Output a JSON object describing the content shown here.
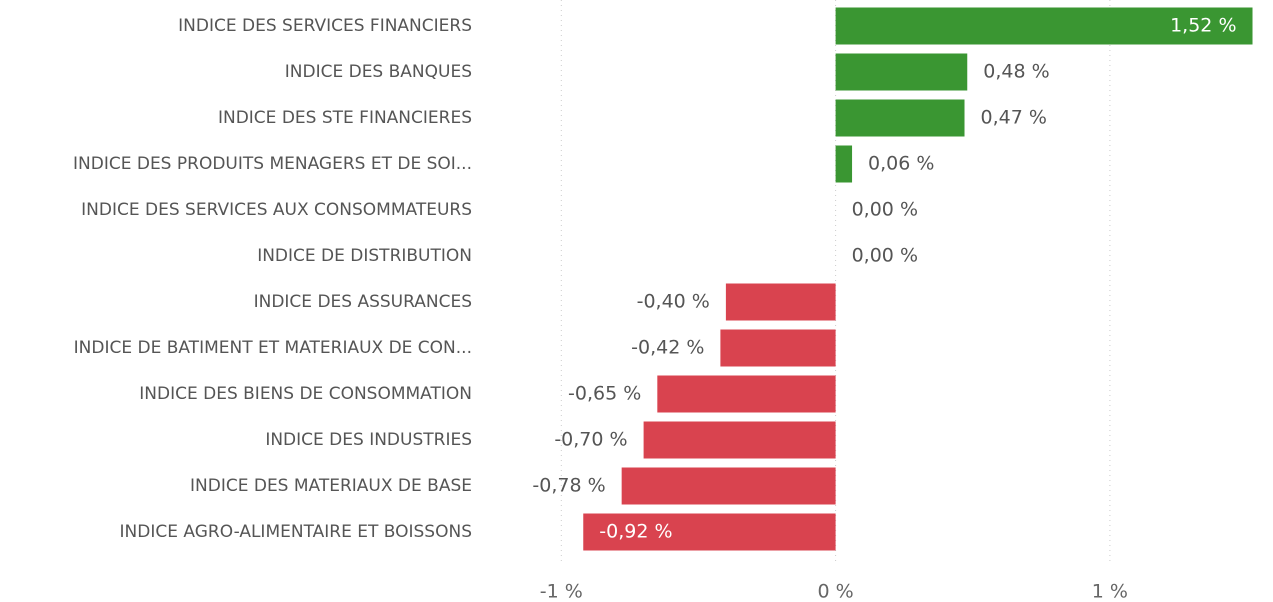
{
  "chart_data": {
    "type": "hbar",
    "categories": [
      "INDICE DES SERVICES FINANCIERS",
      "INDICE DES BANQUES",
      "INDICE DES STE FINANCIERES",
      "INDICE DES PRODUITS MENAGERS ET DE SOI...",
      "INDICE DES SERVICES AUX CONSOMMATEURS",
      "INDICE DE DISTRIBUTION",
      "INDICE DES ASSURANCES",
      "INDICE DE BATIMENT ET MATERIAUX DE CON...",
      "INDICE DES BIENS DE CONSOMMATION",
      "INDICE DES INDUSTRIES",
      "INDICE DES MATERIAUX DE BASE",
      "INDICE AGRO-ALIMENTAIRE ET BOISSONS"
    ],
    "values": [
      1.52,
      0.48,
      0.47,
      0.06,
      0.0,
      0.0,
      -0.4,
      -0.42,
      -0.65,
      -0.7,
      -0.78,
      -0.92
    ],
    "value_labels": [
      "1,52 %",
      "0,48 %",
      "0,47 %",
      "0,06 %",
      "0,00 %",
      "0,00 %",
      "-0,40 %",
      "-0,42 %",
      "-0,65 %",
      "-0,70 %",
      "-0,78 %",
      "-0,92 %"
    ],
    "positive_color": "#3a9632",
    "negative_color": "#d9434f",
    "xlim": [
      -1.26,
      1.54
    ],
    "xticks": [
      {
        "value": -1,
        "label": "-1 %"
      },
      {
        "value": 0,
        "label": "0 %"
      },
      {
        "value": 1,
        "label": "1 %"
      }
    ],
    "grid": true
  }
}
